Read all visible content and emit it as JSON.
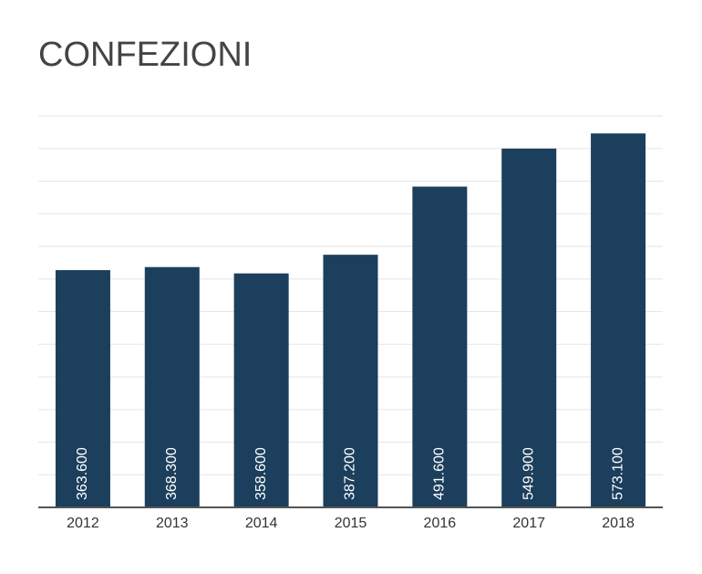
{
  "chart_data": {
    "type": "bar",
    "title": "CONFEZIONI",
    "categories": [
      "2012",
      "2013",
      "2014",
      "2015",
      "2016",
      "2017",
      "2018"
    ],
    "values": [
      363600,
      368300,
      358600,
      387200,
      491600,
      549900,
      573100
    ],
    "value_labels": [
      "363.600",
      "368.300",
      "358.600",
      "387.200",
      "491.600",
      "549.900",
      "573.100"
    ],
    "color": "#1b3f5c",
    "ylim": [
      0,
      600000
    ],
    "yticks": [
      0,
      50000,
      100000,
      150000,
      200000,
      250000,
      300000,
      350000,
      400000,
      450000,
      500000,
      550000,
      600000
    ],
    "grid": true
  }
}
